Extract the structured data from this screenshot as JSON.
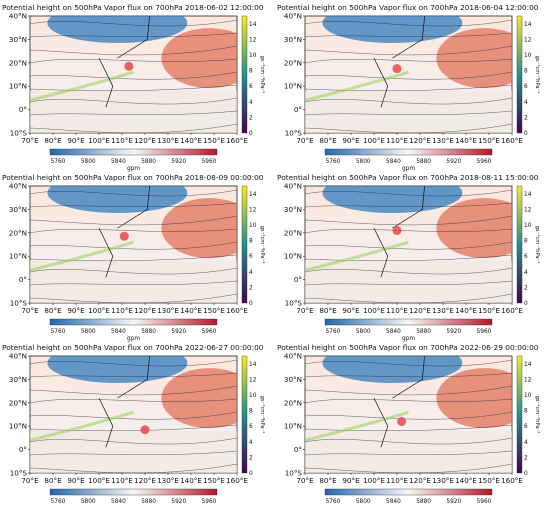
{
  "chart_data": [
    {
      "type": "heatmap",
      "title": "Potential height on 500hPa  Vapor flux on 700hPa  2018-06-02 12:00:00",
      "lon_ticks": [
        "70°E",
        "80°E",
        "90°E",
        "100°E",
        "110°E",
        "120°E",
        "130°E",
        "140°E",
        "150°E",
        "160°E"
      ],
      "lat_ticks": [
        "40°N",
        "30°N",
        "20°N",
        "10°N",
        "0°",
        "10°S"
      ],
      "xlim": [
        70,
        160
      ],
      "ylim": [
        -10,
        40
      ],
      "marker": {
        "lon": 113,
        "lat": 18.5
      },
      "height_colorbar": {
        "ticks": [
          5760,
          5800,
          5840,
          5880,
          5920,
          5960
        ],
        "label": "gpm"
      },
      "flux_colorbar": {
        "ticks": [
          0,
          2,
          4,
          6,
          8,
          10,
          12,
          14
        ],
        "label": "gs⁻¹cm⁻¹hPa⁻¹"
      }
    },
    {
      "type": "heatmap",
      "title": "Potential height on 500hPa  Vapor flux on 700hPa  2018-06-04 12:00:00",
      "lon_ticks": [
        "70°E",
        "80°E",
        "90°E",
        "100°E",
        "110°E",
        "120°E",
        "130°E",
        "140°E",
        "150°E",
        "160°E"
      ],
      "lat_ticks": [
        "40°N",
        "30°N",
        "20°N",
        "10°N",
        "0°",
        "10°S"
      ],
      "xlim": [
        70,
        160
      ],
      "ylim": [
        -10,
        40
      ],
      "marker": {
        "lon": 110,
        "lat": 17.5
      },
      "height_colorbar": {
        "ticks": [
          5760,
          5800,
          5840,
          5880,
          5920,
          5960
        ],
        "label": "gpm"
      },
      "flux_colorbar": {
        "ticks": [
          0,
          2,
          4,
          6,
          8,
          10,
          12,
          14
        ],
        "label": "gs⁻¹cm⁻¹hPa⁻¹"
      }
    },
    {
      "type": "heatmap",
      "title": "Potential height on 500hPa  Vapor flux on 700hPa  2018-08-09 00:00:00",
      "lon_ticks": [
        "70°E",
        "80°E",
        "90°E",
        "100°E",
        "110°E",
        "120°E",
        "130°E",
        "140°E",
        "150°E",
        "160°E"
      ],
      "lat_ticks": [
        "40°N",
        "30°N",
        "20°N",
        "10°N",
        "0°",
        "10°S"
      ],
      "xlim": [
        70,
        160
      ],
      "ylim": [
        -10,
        40
      ],
      "marker": {
        "lon": 111,
        "lat": 18.5
      },
      "height_colorbar": {
        "ticks": [
          5760,
          5800,
          5840,
          5880,
          5920,
          5960
        ],
        "label": "gpm"
      },
      "flux_colorbar": {
        "ticks": [
          0,
          2,
          4,
          6,
          8,
          10,
          12,
          14
        ],
        "label": "gs⁻¹cm⁻¹hPa⁻¹"
      }
    },
    {
      "type": "heatmap",
      "title": "Potential height on 500hPa  Vapor flux on 700hPa  2018-08-11 15:00:00",
      "lon_ticks": [
        "70°E",
        "80°E",
        "90°E",
        "100°E",
        "110°E",
        "120°E",
        "130°E",
        "140°E",
        "150°E",
        "160°E"
      ],
      "lat_ticks": [
        "40°N",
        "30°N",
        "20°N",
        "10°N",
        "0°",
        "10°S"
      ],
      "xlim": [
        70,
        160
      ],
      "ylim": [
        -10,
        40
      ],
      "marker": {
        "lon": 110,
        "lat": 21
      },
      "height_colorbar": {
        "ticks": [
          5760,
          5800,
          5840,
          5880,
          5920,
          5960
        ],
        "label": "gpm"
      },
      "flux_colorbar": {
        "ticks": [
          0,
          2,
          4,
          6,
          8,
          10,
          12,
          14
        ],
        "label": "gs⁻¹cm⁻¹hPa⁻¹"
      }
    },
    {
      "type": "heatmap",
      "title": "Potential height on 500hPa  Vapor flux on 700hPa  2022-06-27 00:00:00",
      "lon_ticks": [
        "70°E",
        "80°E",
        "90°E",
        "100°E",
        "110°E",
        "120°E",
        "130°E",
        "140°E",
        "150°E",
        "160°E"
      ],
      "lat_ticks": [
        "40°N",
        "30°N",
        "20°N",
        "10°N",
        "0°",
        "10°S"
      ],
      "xlim": [
        70,
        160
      ],
      "ylim": [
        -10,
        40
      ],
      "marker": {
        "lon": 120,
        "lat": 8.5
      },
      "height_colorbar": {
        "ticks": [
          5760,
          5800,
          5840,
          5880,
          5920,
          5960
        ],
        "label": "gpm"
      },
      "flux_colorbar": {
        "ticks": [
          0,
          2,
          4,
          6,
          8,
          10,
          12,
          14
        ],
        "label": "gs⁻¹cm⁻¹hPa⁻¹"
      }
    },
    {
      "type": "heatmap",
      "title": "Potential height on 500hPa  Vapor flux on 700hPa  2022-06-29 00:00:00",
      "lon_ticks": [
        "70°E",
        "80°E",
        "90°E",
        "100°E",
        "110°E",
        "120°E",
        "130°E",
        "140°E",
        "150°E",
        "160°E"
      ],
      "lat_ticks": [
        "40°N",
        "30°N",
        "20°N",
        "10°N",
        "0°",
        "10°S"
      ],
      "xlim": [
        70,
        160
      ],
      "ylim": [
        -10,
        40
      ],
      "marker": {
        "lon": 112,
        "lat": 12
      },
      "height_colorbar": {
        "ticks": [
          5760,
          5800,
          5840,
          5880,
          5920,
          5960
        ],
        "label": "gpm"
      },
      "flux_colorbar": {
        "ticks": [
          0,
          2,
          4,
          6,
          8,
          10,
          12,
          14
        ],
        "label": "gs⁻¹cm⁻¹hPa⁻¹"
      }
    }
  ],
  "colors": {
    "height_low": "#2166ac",
    "height_mid": "#f7f7f7",
    "height_high": "#b2182b",
    "flux_low": "#440154",
    "flux_high": "#fde725",
    "marker": "#e8484d",
    "streamline": "#1a1a3a"
  }
}
